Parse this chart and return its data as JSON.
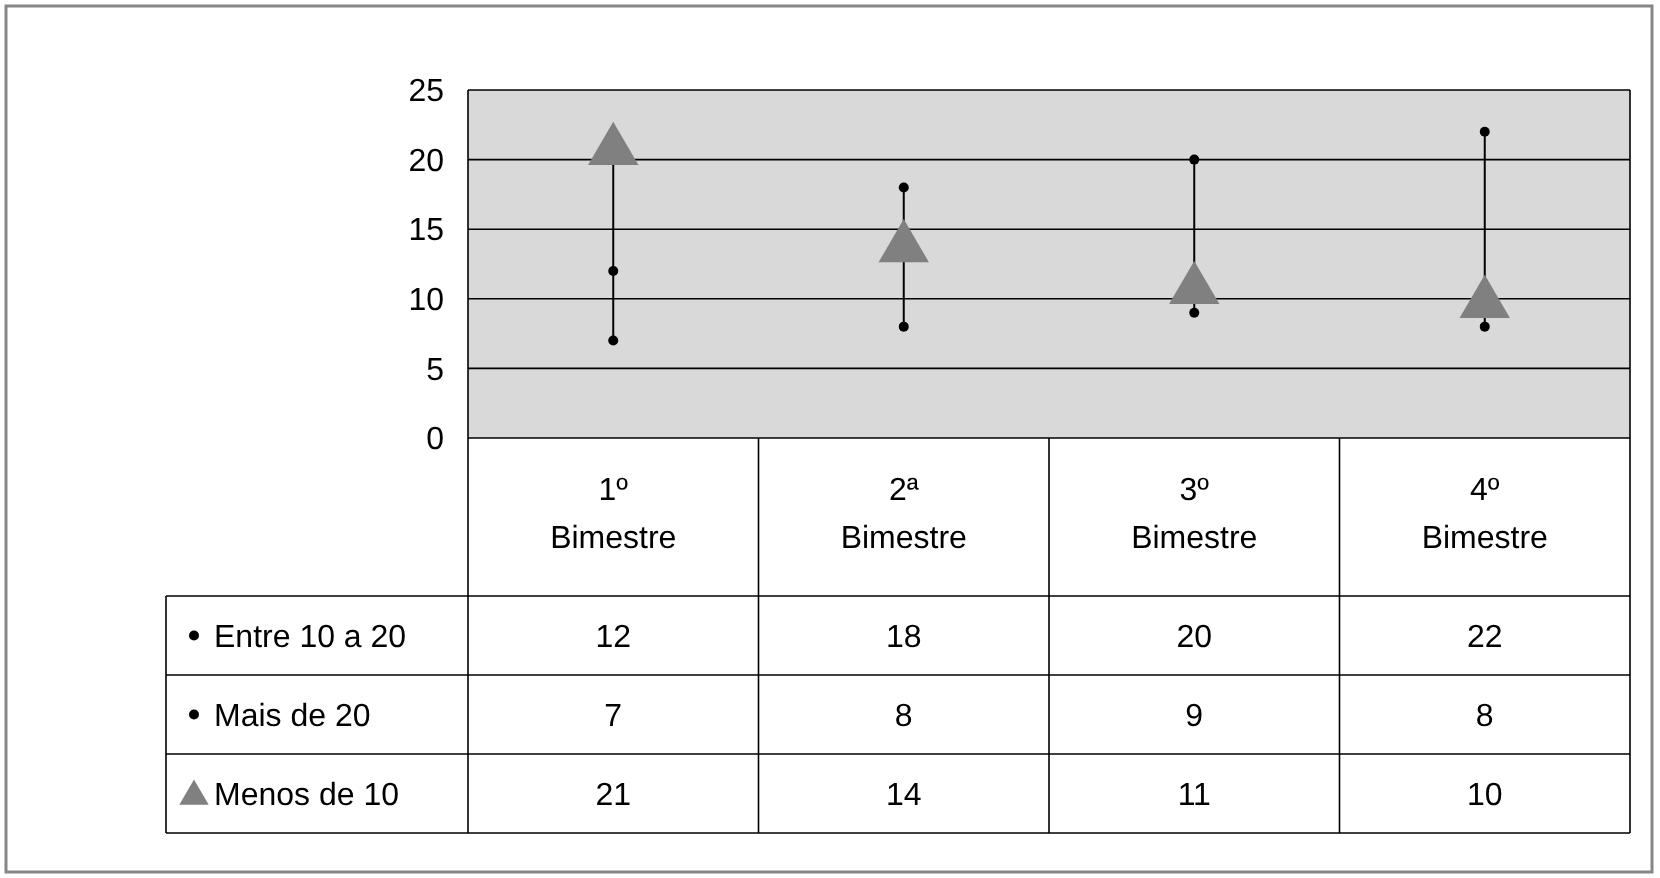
{
  "chart_data": {
    "type": "scatter",
    "categories": [
      "1º Bimestre",
      "2ª Bimestre",
      "3º Bimestre",
      "4º Bimestre"
    ],
    "series": [
      {
        "name": "Entre 10 a 20",
        "color": "#000000",
        "marker": "circle",
        "values": [
          12,
          18,
          20,
          22
        ]
      },
      {
        "name": "Mais de 20",
        "color": "#000000",
        "marker": "circle",
        "values": [
          7,
          8,
          9,
          8
        ]
      },
      {
        "name": "Menos de 10",
        "color": "#808080",
        "marker": "triangle",
        "values": [
          21,
          14,
          11,
          10
        ]
      }
    ],
    "ylim": [
      0,
      25
    ],
    "yticks": [
      0,
      5,
      10,
      15,
      20,
      25
    ],
    "grid": "y",
    "data_labels": true,
    "legend": "bottom left"
  }
}
